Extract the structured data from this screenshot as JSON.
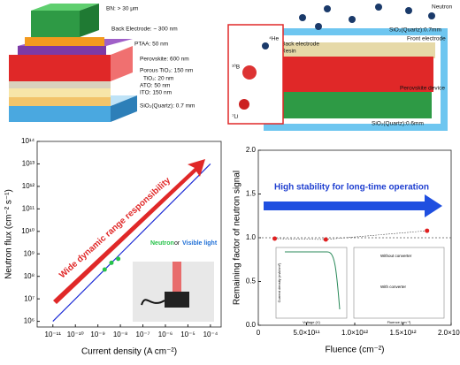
{
  "diagrams": {
    "device_stack": {
      "labels": [
        "BN: > 30 μm",
        "Back Electrode: ~ 300 nm",
        "PTAA: 50 nm",
        "Perovskite: 600 nm",
        "Porous TiO₂: 150 nm",
        "TiO₂: 20 nm",
        "ATO: 50 nm",
        "ITO: 150 nm",
        "SiO₂(Quartz): 0.7 mm"
      ]
    },
    "detector": {
      "labels": [
        "Neutron",
        "SiO₂(Quartz):0.7mm",
        "Back electrode",
        "Resin",
        "Front electrode",
        "Perovskite device",
        "SiO₂(Quartz):0.6mm"
      ],
      "reaction": [
        "⁴He",
        "¹⁰B",
        "⁷Li"
      ]
    }
  },
  "chart_data": [
    {
      "type": "line",
      "xscale": "log",
      "yscale": "log",
      "x_label": "Current density (A cm⁻²)",
      "y_label": "Neutron flux (cm⁻² s⁻¹)",
      "annotations": [
        "Wide dynamic range responsibility",
        "Neutron",
        "or",
        "Visible light"
      ],
      "xlim": [
        2e-12,
        0.0003
      ],
      "ylim": [
        560000,
        100000000000000.0
      ],
      "xticks": [
        {
          "value": 1e-11,
          "label": "10⁻¹¹"
        },
        {
          "value": 1e-10,
          "label": "10⁻¹⁰"
        },
        {
          "value": 1e-09,
          "label": "10⁻⁹"
        },
        {
          "value": 1e-08,
          "label": "10⁻⁸"
        },
        {
          "value": 1e-07,
          "label": "10⁻⁷"
        },
        {
          "value": 1e-06,
          "label": "10⁻⁶"
        },
        {
          "value": 1e-05,
          "label": "10⁻⁵"
        },
        {
          "value": 0.0001,
          "label": "10⁻⁴"
        }
      ],
      "yticks": [
        {
          "value": 1000000.0,
          "label": "10⁶"
        },
        {
          "value": 10000000.0,
          "label": "10⁷"
        },
        {
          "value": 100000000.0,
          "label": "10⁸"
        },
        {
          "value": 1000000000.0,
          "label": "10⁹"
        },
        {
          "value": 10000000000.0,
          "label": "10¹⁰"
        },
        {
          "value": 100000000000.0,
          "label": "10¹¹"
        },
        {
          "value": 1000000000000.0,
          "label": "10¹²"
        },
        {
          "value": 10000000000000.0,
          "label": "10¹³"
        },
        {
          "value": 100000000000000.0,
          "label": "10¹⁴"
        }
      ],
      "series": [
        {
          "color": "#1f2ed6",
          "marker": false,
          "x": [
            1e-11,
            1e-10,
            1e-09,
            1e-08,
            1e-07,
            1e-06,
            1e-05,
            0.0001
          ],
          "values": [
            1000000.0,
            10000000.0,
            100000000.0,
            1000000000.0,
            10000000000.0,
            100000000000.0,
            1000000000000.0,
            10000000000000.0
          ]
        },
        {
          "color": "#27c24a",
          "marker": true,
          "x": [
            2e-09,
            4e-09,
            8e-09
          ],
          "values": [
            200000000.0,
            400000000.0,
            600000000.0
          ]
        }
      ]
    },
    {
      "type": "line",
      "xscale": "linear",
      "yscale": "linear",
      "x_label": "Fluence (cm⁻²)",
      "y_label": "Remaining factor of neutron signal",
      "annotations": [
        "High stability for long-time operation",
        "Voltage (V)",
        "Current density (mA/cm²)",
        "Without converter",
        "With converter",
        "Fluence (cm⁻²)"
      ],
      "xlim": [
        0,
        2000000000000.0
      ],
      "ylim": [
        0,
        2
      ],
      "xticks": [
        0,
        {
          "value": 500000000000.0,
          "label": "5.0×10¹¹"
        },
        {
          "value": 1000000000000.0,
          "label": "1.0×10¹²"
        },
        {
          "value": 1500000000000.0,
          "label": "1.5×10¹²"
        },
        {
          "value": 2000000000000.0,
          "label": "2.0×10¹²"
        }
      ],
      "yticks": [
        {
          "value": 0,
          "label": "0.0"
        },
        {
          "value": 0.5,
          "label": "0.5"
        },
        {
          "value": 1,
          "label": "1.0"
        },
        {
          "value": 1.5,
          "label": "1.5"
        },
        {
          "value": 2,
          "label": "2.0"
        }
      ],
      "hline": 1,
      "series": [
        {
          "color": "#e02020",
          "marker": true,
          "x": [
            170000000000.0,
            700000000000.0,
            1750000000000.0
          ],
          "values": [
            0.99,
            0.98,
            1.08
          ]
        }
      ]
    }
  ]
}
